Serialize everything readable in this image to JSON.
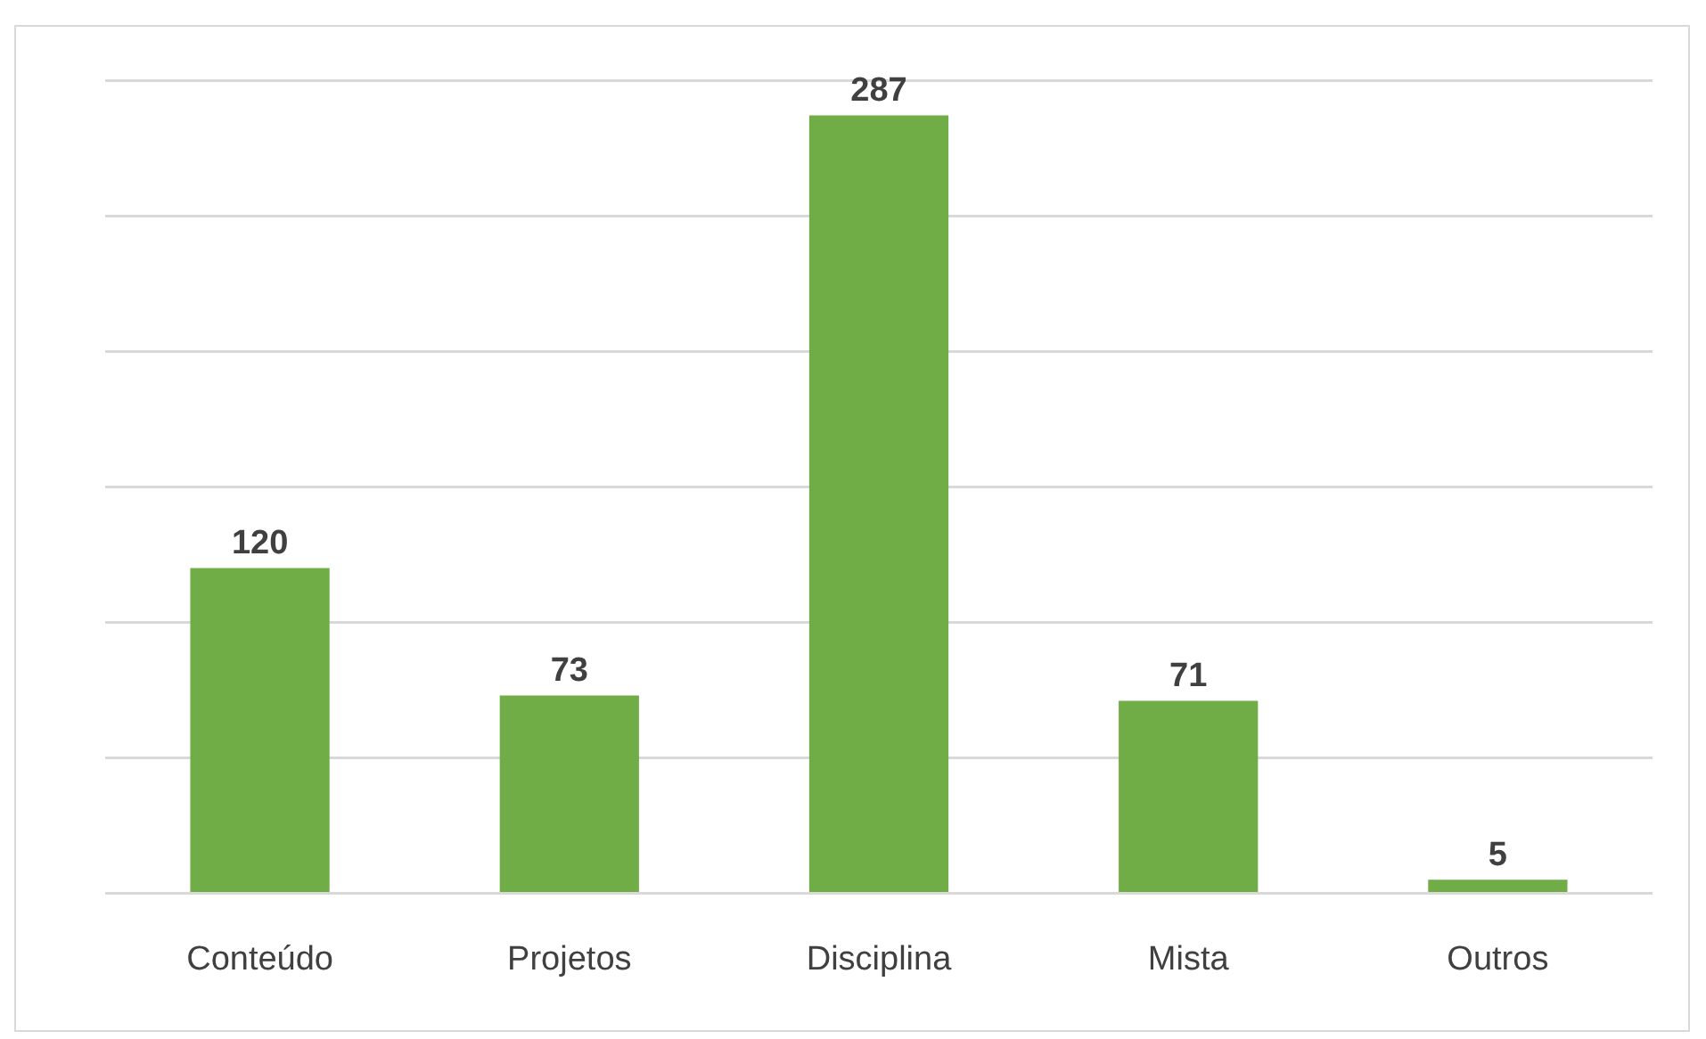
{
  "chart_data": {
    "type": "bar",
    "categories": [
      "Conteúdo",
      "Projetos",
      "Disciplina",
      "Mista",
      "Outros"
    ],
    "values": [
      120,
      73,
      287,
      71,
      5
    ],
    "color": "#70ad47",
    "ylim": [
      0,
      300
    ],
    "yticks": [
      0,
      50,
      100,
      150,
      200,
      250,
      300
    ],
    "grid": "y",
    "tick_labels": "x",
    "data_labels": true
  }
}
